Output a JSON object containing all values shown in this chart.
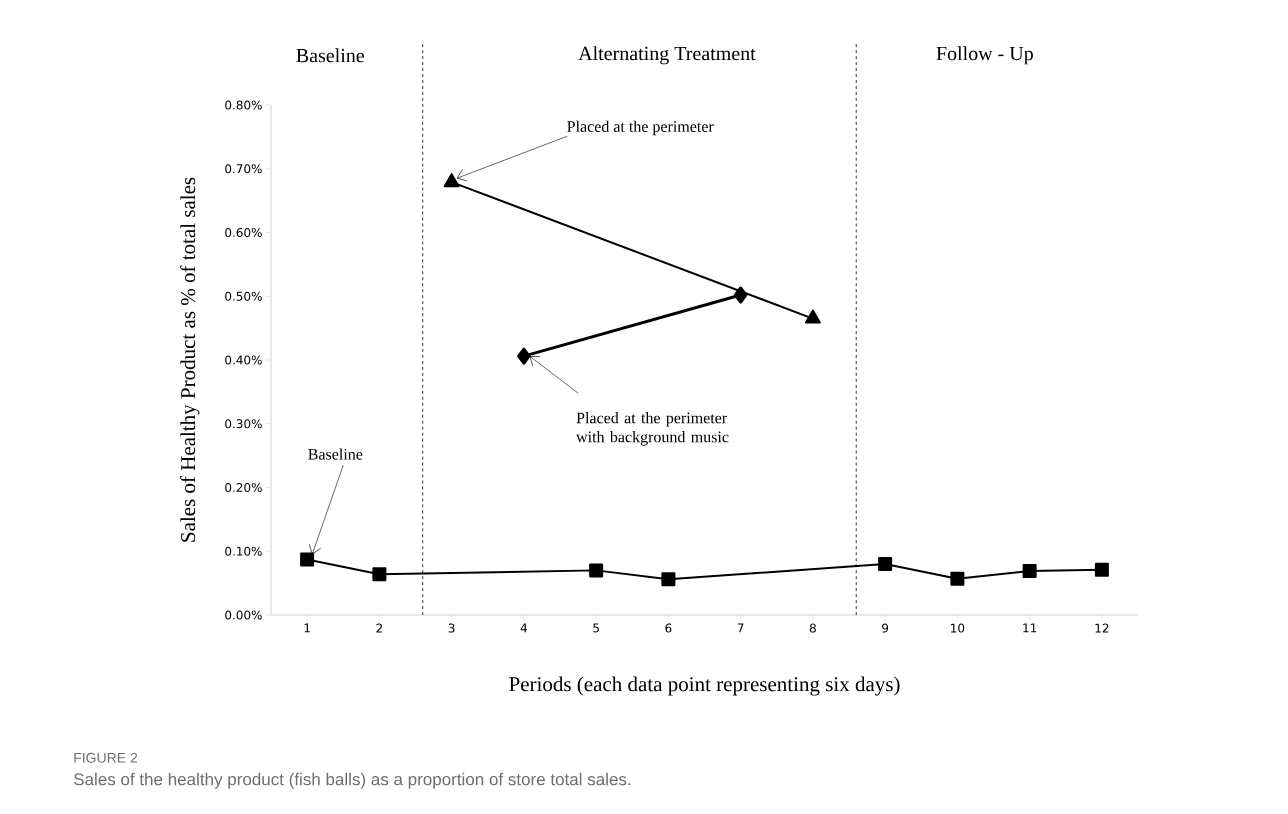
{
  "chart_data": {
    "type": "line",
    "xlabel": "Periods (each data point representing six days)",
    "ylabel": "Sales of Healthy Product as % of total sales",
    "xlim": [
      0.5,
      12.5
    ],
    "xticks": [
      1,
      2,
      3,
      4,
      5,
      6,
      7,
      8,
      9,
      10,
      11,
      12
    ],
    "ylim": [
      0,
      0.8
    ],
    "yticks": [
      {
        "value": 0,
        "label": "0.00%"
      },
      {
        "value": 0.1,
        "label": "0.10%"
      },
      {
        "value": 0.2,
        "label": "0.20%"
      },
      {
        "value": 0.3,
        "label": "0.30%"
      },
      {
        "value": 0.4,
        "label": "0.40%"
      },
      {
        "value": 0.5,
        "label": "0.50%"
      },
      {
        "value": 0.6,
        "label": "0.60%"
      },
      {
        "value": 0.7,
        "label": "0.70%"
      },
      {
        "value": 0.8,
        "label": "0.80%"
      }
    ],
    "series": [
      {
        "color": "#000000",
        "marker": "square",
        "x": [
          1,
          2,
          5,
          6,
          9,
          10,
          11,
          12
        ],
        "values": [
          0.087,
          0.064,
          0.07,
          0.056,
          0.08,
          0.057,
          0.069,
          0.071
        ]
      },
      {
        "color": "#000000",
        "marker": "triangle",
        "x": [
          3,
          8
        ],
        "values": [
          0.679,
          0.465
        ]
      },
      {
        "color": "#000000",
        "marker": "diamond",
        "x": [
          4,
          7
        ],
        "values": [
          0.406,
          0.502
        ]
      }
    ],
    "ref_lines": [
      {
        "axis": "x",
        "value": 2.6,
        "line_style": "dashed",
        "color": "#000000"
      },
      {
        "axis": "x",
        "value": 8.6,
        "line_style": "dashed",
        "color": "#000000"
      }
    ],
    "annotations": [
      "Baseline",
      "Alternating Treatment",
      "Follow - Up",
      {
        "text": "Placed at the perimeter",
        "x": 3,
        "y": 0.679
      },
      {
        "text": "Placed at the perimeter with background music",
        "x": 4,
        "y": 0.406
      },
      {
        "text": "Baseline",
        "x": 1,
        "y": 0.087
      },
      "FIGURE 2",
      "Sales of the healthy product (fish balls) as a proportion of store total sales."
    ]
  }
}
